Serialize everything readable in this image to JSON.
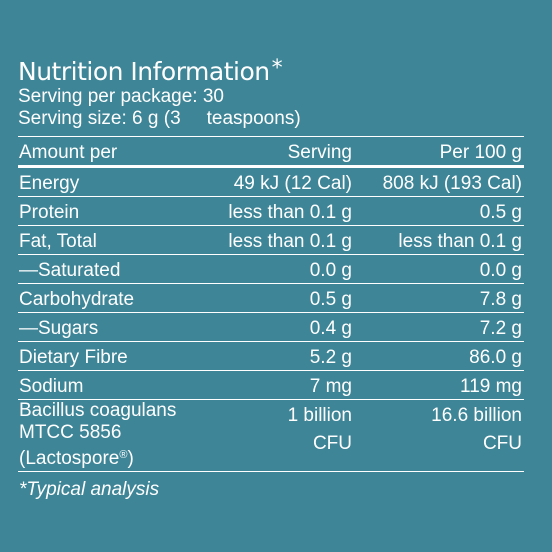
{
  "title": "Nutrition Information",
  "title_mark": "*",
  "servings_per_package": "Serving per package: 30",
  "serving_size_part1": "Serving size: 6 g (3",
  "serving_size_part2": "teaspoons)",
  "table": {
    "header": {
      "name": "Amount per",
      "serving": "Serving",
      "per100": "Per 100 g"
    },
    "rows": [
      {
        "name": "Energy",
        "serving": "49 kJ (12 Cal)",
        "per100": "808 kJ (193 Cal)"
      },
      {
        "name": "Protein",
        "serving": "less than 0.1 g",
        "per100": "0.5 g"
      },
      {
        "name": "Fat, Total",
        "serving": "less than 0.1 g",
        "per100": "less than 0.1 g"
      },
      {
        "name": "—Saturated",
        "serving": "0.0 g",
        "per100": "0.0 g"
      },
      {
        "name": "Carbohydrate",
        "serving": "0.5 g",
        "per100": "7.8 g"
      },
      {
        "name": "—Sugars",
        "serving": "0.4 g",
        "per100": "7.2 g"
      },
      {
        "name": "Dietary Fibre",
        "serving": "5.2 g",
        "per100": "86.0 g"
      },
      {
        "name": "Sodium",
        "serving": "7 mg",
        "per100": "119 mg"
      }
    ],
    "bacillus": {
      "name_line1": "Bacillus coagulans",
      "name_line2": "MTCC 5856",
      "name_line3": "(Lactospore",
      "name_reg": "®",
      "name_close": ")",
      "serving_line1": "1 billion",
      "serving_line2": "CFU",
      "per100_line1": "16.6 billion",
      "per100_line2": "CFU"
    }
  },
  "footnote": "*Typical analysis",
  "colors": {
    "background": "#3d8597",
    "text": "#ffffff"
  }
}
